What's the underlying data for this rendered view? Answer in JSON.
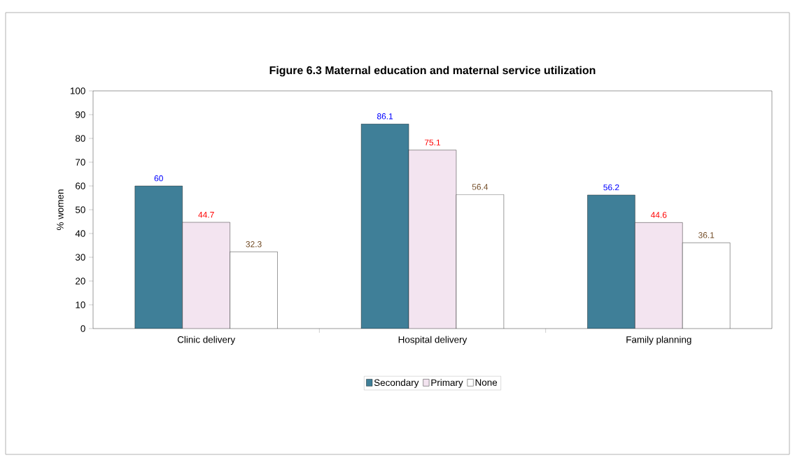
{
  "chart_data": {
    "type": "bar",
    "title": "Figure 6.3 Maternal education and maternal service utilization",
    "ylabel": "% women",
    "categories": [
      "Clinic delivery",
      "Hospital delivery",
      "Family planning"
    ],
    "series": [
      {
        "name": "Secondary",
        "color": "#3f7f98",
        "values": [
          60,
          86.1,
          56.2
        ]
      },
      {
        "name": "Primary",
        "color": "#f3e4f0",
        "values": [
          44.7,
          75.1,
          44.6
        ]
      },
      {
        "name": "None",
        "color": "#ffffff",
        "values": [
          32.3,
          56.4,
          36.1
        ]
      }
    ],
    "ylim": [
      0,
      100
    ],
    "yticks": [
      0,
      10,
      20,
      30,
      40,
      50,
      60,
      70,
      80,
      90,
      100
    ],
    "data_labels": true,
    "legend": "bottom"
  }
}
